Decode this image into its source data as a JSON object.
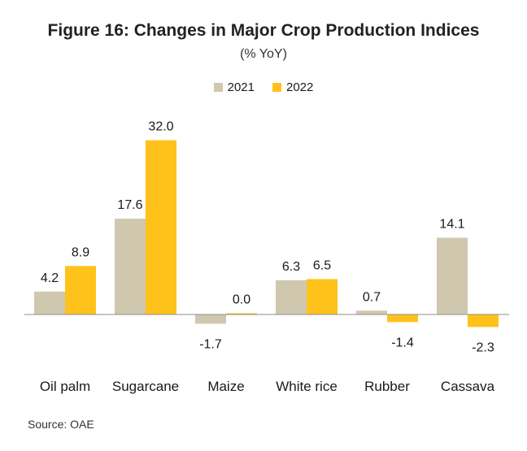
{
  "title": "Figure 16: Changes in Major Crop Production  Indices",
  "subtitle": "(% YoY)",
  "source": "Source: OAE",
  "colors": {
    "2021": "#CFC8AE",
    "2022": "#FFC21A",
    "axis": "#8c8c8c"
  },
  "chart_data": {
    "type": "bar",
    "title": "Figure 16: Changes in Major Crop Production  Indices",
    "subtitle": "(% YoY)",
    "categories": [
      "Oil palm",
      "Sugarcane",
      "Maize",
      "White rice",
      "Rubber",
      "Cassava"
    ],
    "series": [
      {
        "name": "2021",
        "values": [
          4.2,
          17.6,
          -1.7,
          6.3,
          0.7,
          14.1
        ]
      },
      {
        "name": "2022",
        "values": [
          8.9,
          32.0,
          0.0,
          6.5,
          -1.4,
          -2.3
        ]
      }
    ],
    "legend": "top-center",
    "data_labels": true,
    "grid": false
  }
}
